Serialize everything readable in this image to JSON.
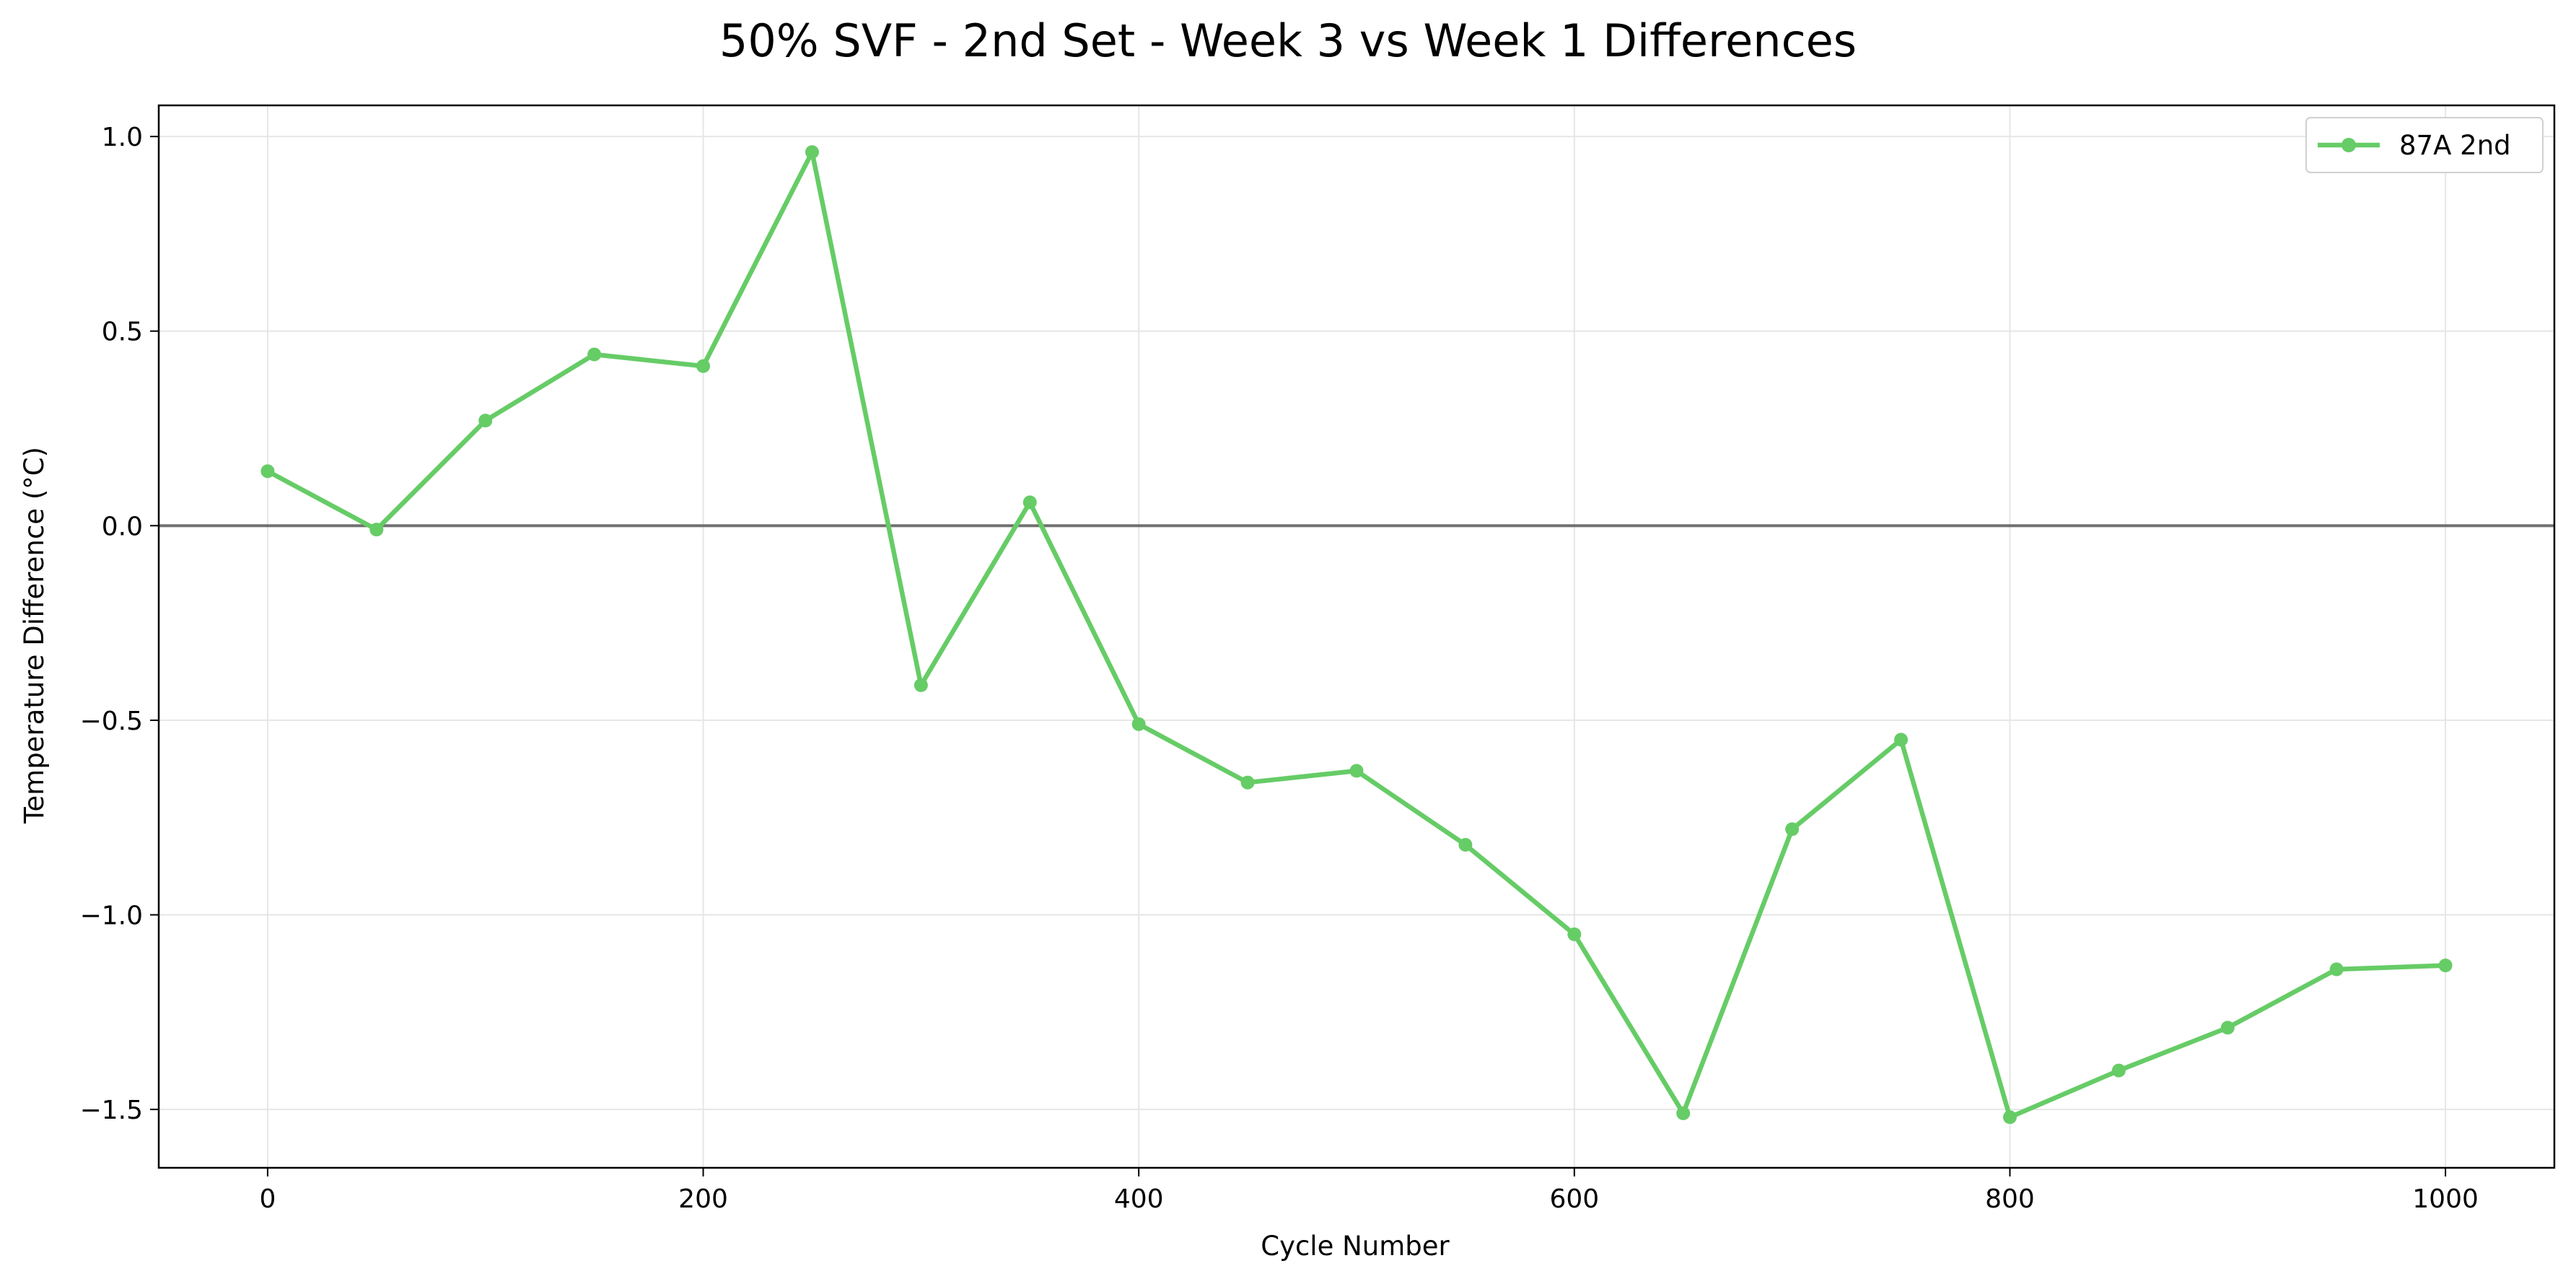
{
  "chart_data": {
    "type": "line",
    "title": "50% SVF - 2nd Set - Week 3 vs Week 1 Differences",
    "xlabel": "Cycle Number",
    "ylabel": "Temperature Difference (°C)",
    "xlim": [
      -50,
      1050
    ],
    "ylim": [
      -1.65,
      1.08
    ],
    "x_ticks": [
      0,
      200,
      400,
      600,
      800,
      1000
    ],
    "y_ticks": [
      1.0,
      0.5,
      0.0,
      -0.5,
      -1.0,
      -1.5
    ],
    "x_tick_labels": [
      "0",
      "200",
      "400",
      "600",
      "800",
      "1000"
    ],
    "y_tick_labels": [
      "1.0",
      "0.5",
      "0.0",
      "−0.5",
      "−1.0",
      "−1.5"
    ],
    "grid": true,
    "reference_line_y": 0,
    "legend_position": "top-right",
    "series": [
      {
        "name": "87A 2nd",
        "color": "#66cc66",
        "marker": "circle",
        "x": [
          0,
          50,
          100,
          150,
          200,
          250,
          300,
          350,
          400,
          450,
          500,
          550,
          600,
          650,
          700,
          750,
          800,
          850,
          900,
          950,
          1000
        ],
        "values": [
          0.14,
          -0.01,
          0.27,
          0.44,
          0.41,
          0.96,
          -0.41,
          0.06,
          -0.51,
          -0.66,
          -0.63,
          -0.82,
          -1.05,
          -1.51,
          -0.78,
          -0.55,
          -1.52,
          -1.4,
          -1.29,
          -1.14,
          -1.13
        ]
      }
    ]
  },
  "colors": {
    "series": "#66cc66",
    "grid": "#e6e6e6",
    "zero_line": "#707070",
    "axes": "#000000"
  }
}
